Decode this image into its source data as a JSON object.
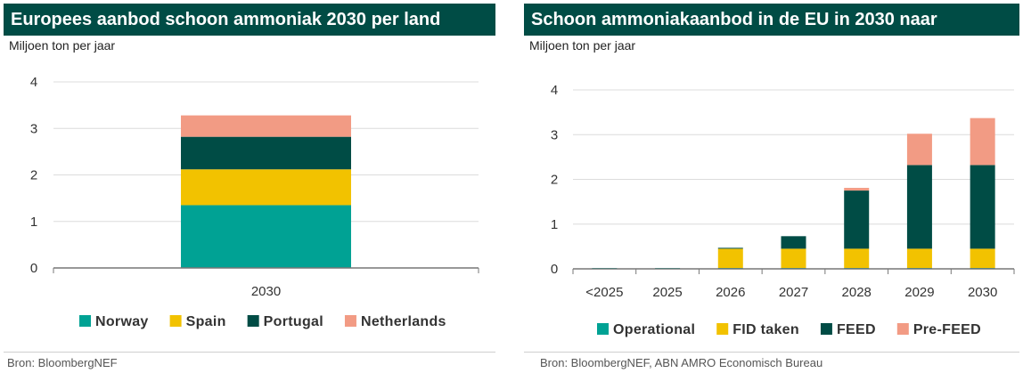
{
  "colors": {
    "header_bg": "#004c45",
    "Operational": "#00a294",
    "FID taken": "#f2c200",
    "FEED": "#004c45",
    "Pre-FEED": "#f29b84",
    "Norway": "#00a294",
    "Spain": "#f2c200",
    "Portugal": "#004c45",
    "Netherlands": "#f29b84"
  },
  "left": {
    "title": "Europees aanbod schoon ammoniak 2030 per land",
    "unit": "Miljoen ton per jaar",
    "source": "Bron: BloombergNEF"
  },
  "right": {
    "title": "Schoon ammoniakaanbod in de EU in 2030 naar",
    "unit": "Miljoen ton per jaar",
    "source": "Bron: BloombergNEF, ABN AMRO Economisch Bureau"
  },
  "chart_data": [
    {
      "type": "bar",
      "stacked": true,
      "title": "Europees aanbod schoon ammoniak 2030 per land",
      "ylabel": "Miljoen ton per jaar",
      "categories": [
        "2030"
      ],
      "ylim": [
        0,
        4
      ],
      "yticks": [
        "0",
        "1",
        "2",
        "3",
        "4"
      ],
      "grid": true,
      "legend": "bottom",
      "series": [
        {
          "name": "Norway",
          "values": [
            1.35
          ]
        },
        {
          "name": "Spain",
          "values": [
            0.77
          ]
        },
        {
          "name": "Portugal",
          "values": [
            0.7
          ]
        },
        {
          "name": "Netherlands",
          "values": [
            0.46
          ]
        }
      ]
    },
    {
      "type": "bar",
      "stacked": true,
      "title": "Schoon ammoniakaanbod in de EU in 2030 naar",
      "ylabel": "Miljoen ton per jaar",
      "categories": [
        "<2025",
        "2025",
        "2026",
        "2027",
        "2028",
        "2029",
        "2030"
      ],
      "ylim": [
        0,
        4
      ],
      "yticks": [
        "0",
        "1",
        "2",
        "3",
        "4"
      ],
      "grid": true,
      "legend": "bottom",
      "series": [
        {
          "name": "Operational",
          "values": [
            0.02,
            0.02,
            0.02,
            0.02,
            0.02,
            0.02,
            0.02
          ]
        },
        {
          "name": "FID taken",
          "values": [
            0,
            0,
            0.43,
            0.43,
            0.43,
            0.43,
            0.43
          ]
        },
        {
          "name": "FEED",
          "values": [
            0,
            0,
            0.02,
            0.28,
            1.3,
            1.87,
            1.87
          ]
        },
        {
          "name": "Pre-FEED",
          "values": [
            0,
            0,
            0,
            0,
            0.06,
            0.7,
            1.05
          ]
        }
      ]
    }
  ]
}
